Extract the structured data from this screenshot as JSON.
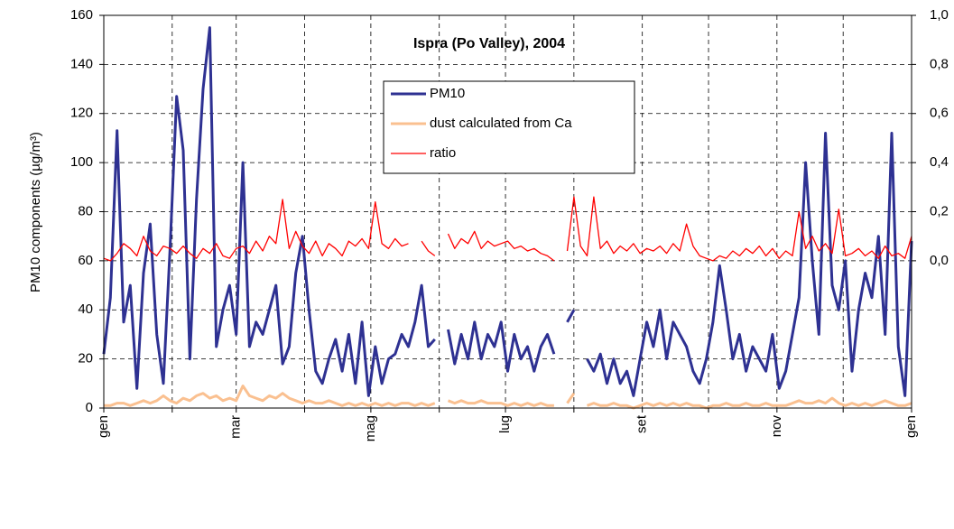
{
  "chart_data": {
    "type": "line",
    "title": "Ispra (Po Valley), 2004",
    "y_label": "PM10 components (µg/m³)",
    "x": [
      0,
      3,
      6,
      9,
      12,
      15,
      18,
      21,
      24,
      27,
      30,
      33,
      36,
      39,
      42,
      45,
      48,
      51,
      54,
      57,
      60,
      63,
      66,
      69,
      72,
      75,
      78,
      81,
      84,
      87,
      90,
      93,
      96,
      99,
      102,
      105,
      108,
      111,
      114,
      117,
      120,
      123,
      126,
      129,
      132,
      135,
      138,
      141,
      144,
      147,
      150,
      153,
      156,
      159,
      162,
      165,
      168,
      171,
      174,
      177,
      180,
      183,
      186,
      189,
      192,
      195,
      198,
      201,
      204,
      207,
      210,
      213,
      216,
      219,
      222,
      225,
      228,
      231,
      234,
      237,
      240,
      243,
      246,
      249,
      252,
      255,
      258,
      261,
      264,
      267,
      270,
      273,
      276,
      279,
      282,
      285,
      288,
      291,
      294,
      297,
      300,
      303,
      306,
      309,
      312,
      315,
      318,
      321,
      324,
      327,
      330,
      333,
      336,
      339,
      342,
      345,
      348,
      351,
      354,
      357,
      360,
      363,
      366
    ],
    "xlim": [
      0,
      366
    ],
    "xticks": [
      {
        "value": 0,
        "label": "gen"
      },
      {
        "value": 60,
        "label": "mar"
      },
      {
        "value": 121,
        "label": "mag"
      },
      {
        "value": 182,
        "label": "lug"
      },
      {
        "value": 244,
        "label": "set"
      },
      {
        "value": 305,
        "label": "nov"
      },
      {
        "value": 366,
        "label": "gen"
      }
    ],
    "x_minor_grid": [
      31,
      91,
      152,
      213,
      274,
      335
    ],
    "ylim": [
      0,
      160
    ],
    "yticks": [
      0,
      20,
      40,
      60,
      80,
      100,
      120,
      140,
      160
    ],
    "y2lim": [
      -0.6,
      1.0
    ],
    "y2ticks": [
      {
        "value": 0,
        "label": "0,0"
      },
      {
        "value": 0.2,
        "label": "0,2"
      },
      {
        "value": 0.4,
        "label": "0,4"
      },
      {
        "value": 0.6,
        "label": "0,6"
      },
      {
        "value": 0.8,
        "label": "0,8"
      },
      {
        "value": 1.0,
        "label": "1,0"
      }
    ],
    "y2_color": "#ff0000",
    "grid": true,
    "series": [
      {
        "name": "PM10",
        "color": "#2e3192",
        "values": [
          22,
          45,
          113,
          35,
          50,
          8,
          55,
          75,
          30,
          10,
          65,
          127,
          105,
          20,
          85,
          130,
          155,
          25,
          40,
          50,
          30,
          100,
          25,
          35,
          30,
          40,
          50,
          18,
          25,
          55,
          70,
          40,
          15,
          10,
          20,
          28,
          15,
          30,
          10,
          35,
          5,
          25,
          10,
          20,
          22,
          30,
          25,
          35,
          50,
          25,
          28,
          null,
          32,
          18,
          30,
          20,
          35,
          20,
          30,
          25,
          35,
          15,
          30,
          20,
          25,
          15,
          25,
          30,
          22,
          null,
          35,
          40,
          null,
          20,
          15,
          22,
          10,
          20,
          10,
          15,
          5,
          20,
          35,
          25,
          40,
          20,
          35,
          30,
          25,
          15,
          10,
          20,
          35,
          58,
          40,
          20,
          30,
          15,
          25,
          20,
          15,
          30,
          8,
          15,
          30,
          45,
          100,
          60,
          30,
          112,
          50,
          40,
          60,
          15,
          40,
          55,
          45,
          70,
          30,
          112,
          25,
          5,
          68
        ]
      },
      {
        "name": "dust calculated from Ca",
        "color": "#fac090",
        "values": [
          1,
          1,
          2,
          2,
          1,
          2,
          3,
          2,
          3,
          5,
          3,
          2,
          4,
          3,
          5,
          6,
          4,
          5,
          3,
          4,
          3,
          9,
          5,
          4,
          3,
          5,
          4,
          6,
          4,
          3,
          2,
          3,
          2,
          2,
          3,
          2,
          1,
          2,
          1,
          2,
          1,
          2,
          1,
          2,
          1,
          2,
          2,
          1,
          2,
          1,
          2,
          null,
          3,
          2,
          3,
          2,
          2,
          3,
          2,
          2,
          2,
          1,
          2,
          1,
          2,
          1,
          2,
          1,
          1,
          null,
          2,
          6,
          null,
          1,
          2,
          1,
          1,
          2,
          1,
          1,
          0,
          1,
          2,
          1,
          2,
          1,
          2,
          1,
          2,
          1,
          1,
          0,
          1,
          1,
          2,
          1,
          1,
          2,
          1,
          1,
          2,
          1,
          1,
          1,
          2,
          3,
          2,
          2,
          3,
          2,
          4,
          2,
          1,
          2,
          1,
          2,
          1,
          2,
          3,
          2,
          1,
          1,
          2
        ]
      },
      {
        "name": "ratio",
        "color": "#ff0000",
        "axis": "y2",
        "values": [
          0.01,
          0.0,
          0.03,
          0.07,
          0.05,
          0.02,
          0.1,
          0.04,
          0.02,
          0.06,
          0.05,
          0.03,
          0.06,
          0.03,
          0.01,
          0.05,
          0.03,
          0.07,
          0.02,
          0.01,
          0.05,
          0.06,
          0.03,
          0.08,
          0.04,
          0.1,
          0.07,
          0.25,
          0.05,
          0.12,
          0.06,
          0.03,
          0.08,
          0.02,
          0.07,
          0.05,
          0.02,
          0.08,
          0.06,
          0.09,
          0.05,
          0.24,
          0.07,
          0.05,
          0.09,
          0.06,
          0.07,
          null,
          0.08,
          0.04,
          0.02,
          null,
          0.11,
          0.05,
          0.09,
          0.07,
          0.12,
          0.05,
          0.08,
          0.06,
          0.07,
          0.08,
          0.05,
          0.06,
          0.04,
          0.05,
          0.03,
          0.02,
          0.0,
          null,
          0.04,
          0.26,
          0.06,
          0.02,
          0.26,
          0.05,
          0.08,
          0.03,
          0.06,
          0.04,
          0.07,
          0.03,
          0.05,
          0.04,
          0.06,
          0.03,
          0.07,
          0.04,
          0.15,
          0.06,
          0.02,
          0.01,
          0.0,
          0.02,
          0.01,
          0.04,
          0.02,
          0.05,
          0.03,
          0.06,
          0.02,
          0.05,
          0.01,
          0.04,
          0.02,
          0.2,
          0.05,
          0.1,
          0.04,
          0.07,
          0.03,
          0.21,
          0.02,
          0.03,
          0.05,
          0.02,
          0.04,
          0.01,
          0.06,
          0.02,
          0.03,
          0.01,
          0.1
        ]
      }
    ]
  }
}
